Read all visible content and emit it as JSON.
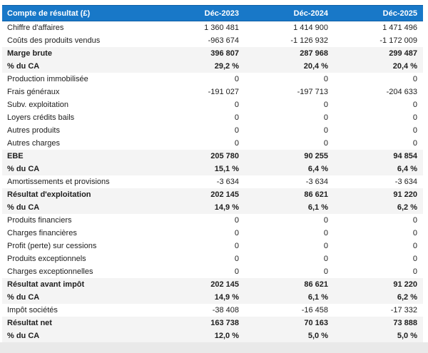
{
  "table": {
    "header": {
      "label": "Compte de résultat (£)",
      "cols": [
        "Déc-2023",
        "Déc-2024",
        "Déc-2025"
      ]
    },
    "rows": [
      {
        "label": "Chiffre d'affaires",
        "type": "normal",
        "values": [
          "1 360 481",
          "1 414 900",
          "1 471 496"
        ]
      },
      {
        "label": "Coûts des produits vendus",
        "type": "normal",
        "values": [
          "-963 674",
          "-1 126 932",
          "-1 172 009"
        ]
      },
      {
        "label": "Marge brute",
        "type": "total",
        "values": [
          "396 807",
          "287 968",
          "299 487"
        ]
      },
      {
        "label": "% du CA",
        "type": "total",
        "values": [
          "29,2 %",
          "20,4 %",
          "20,4 %"
        ]
      },
      {
        "label": "Production immobilisée",
        "type": "normal",
        "values": [
          "0",
          "0",
          "0"
        ]
      },
      {
        "label": "Frais généraux",
        "type": "normal",
        "values": [
          "-191 027",
          "-197 713",
          "-204 633"
        ]
      },
      {
        "label": "Subv. exploitation",
        "type": "normal",
        "values": [
          "0",
          "0",
          "0"
        ]
      },
      {
        "label": "Loyers crédits bails",
        "type": "normal",
        "values": [
          "0",
          "0",
          "0"
        ]
      },
      {
        "label": "Autres produits",
        "type": "normal",
        "values": [
          "0",
          "0",
          "0"
        ]
      },
      {
        "label": "Autres charges",
        "type": "normal",
        "values": [
          "0",
          "0",
          "0"
        ]
      },
      {
        "label": "EBE",
        "type": "total",
        "values": [
          "205 780",
          "90 255",
          "94 854"
        ]
      },
      {
        "label": "% du CA",
        "type": "total",
        "values": [
          "15,1 %",
          "6,4 %",
          "6,4 %"
        ]
      },
      {
        "label": "Amortissements et provisions",
        "type": "normal",
        "values": [
          "-3 634",
          "-3 634",
          "-3 634"
        ]
      },
      {
        "label": "Résultat d'exploitation",
        "type": "total",
        "values": [
          "202 145",
          "86 621",
          "91 220"
        ]
      },
      {
        "label": "% du CA",
        "type": "total",
        "values": [
          "14,9 %",
          "6,1 %",
          "6,2 %"
        ]
      },
      {
        "label": "Produits financiers",
        "type": "normal",
        "values": [
          "0",
          "0",
          "0"
        ]
      },
      {
        "label": "Charges financières",
        "type": "normal",
        "values": [
          "0",
          "0",
          "0"
        ]
      },
      {
        "label": "Profit (perte) sur cessions",
        "type": "normal",
        "values": [
          "0",
          "0",
          "0"
        ]
      },
      {
        "label": "Produits exceptionnels",
        "type": "normal",
        "values": [
          "0",
          "0",
          "0"
        ]
      },
      {
        "label": "Charges exceptionnelles",
        "type": "normal",
        "values": [
          "0",
          "0",
          "0"
        ]
      },
      {
        "label": "Résultat avant impôt",
        "type": "total",
        "values": [
          "202 145",
          "86 621",
          "91 220"
        ]
      },
      {
        "label": "% du CA",
        "type": "total",
        "values": [
          "14,9 %",
          "6,1 %",
          "6,2 %"
        ]
      },
      {
        "label": "Impôt sociétés",
        "type": "normal",
        "values": [
          "-38 408",
          "-16 458",
          "-17 332"
        ]
      },
      {
        "label": "Résultat net",
        "type": "total",
        "values": [
          "163 738",
          "70 163",
          "73 888"
        ]
      },
      {
        "label": "% du CA",
        "type": "total",
        "values": [
          "12,0 %",
          "5,0 %",
          "5,0 %"
        ]
      }
    ]
  },
  "colors": {
    "header_bg": "#1878c8",
    "header_border": "#0e5fa6",
    "header_text": "#ffffff",
    "total_row_bg": "#f4f4f4",
    "body_text": "#202020",
    "footer_strip_bg": "#e9e9e9"
  }
}
